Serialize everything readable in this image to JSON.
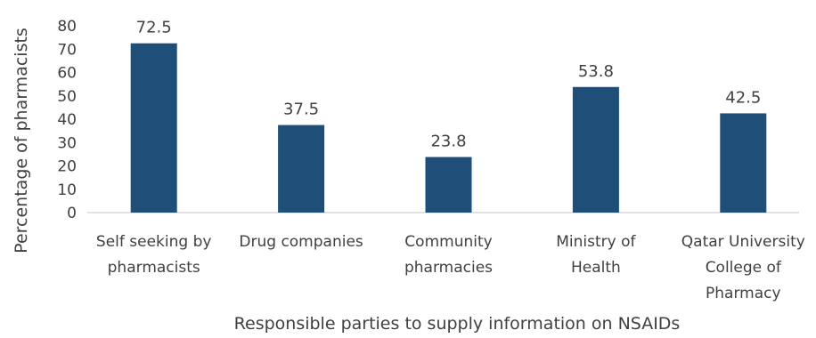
{
  "chart_data": {
    "type": "bar",
    "categories": [
      [
        "Self seeking by",
        "pharmacists"
      ],
      [
        "Drug companies"
      ],
      [
        "Community",
        "pharmacies"
      ],
      [
        "Ministry of",
        "Health"
      ],
      [
        "Qatar University",
        "College of",
        "Pharmacy"
      ]
    ],
    "values": [
      72.5,
      37.5,
      23.8,
      53.8,
      42.5
    ],
    "data_labels": [
      "72.5",
      "37.5",
      "23.8",
      "53.8",
      "42.5"
    ],
    "xlabel": "Responsible parties to supply information on NSAIDs",
    "ylabel": "Percentage of pharmacists",
    "ylim": [
      0,
      80
    ],
    "yticks": [
      "0",
      "10",
      "20",
      "30",
      "40",
      "50",
      "60",
      "70",
      "80"
    ],
    "grid": false,
    "legend": "none",
    "bar_color": "#1f4e79"
  }
}
